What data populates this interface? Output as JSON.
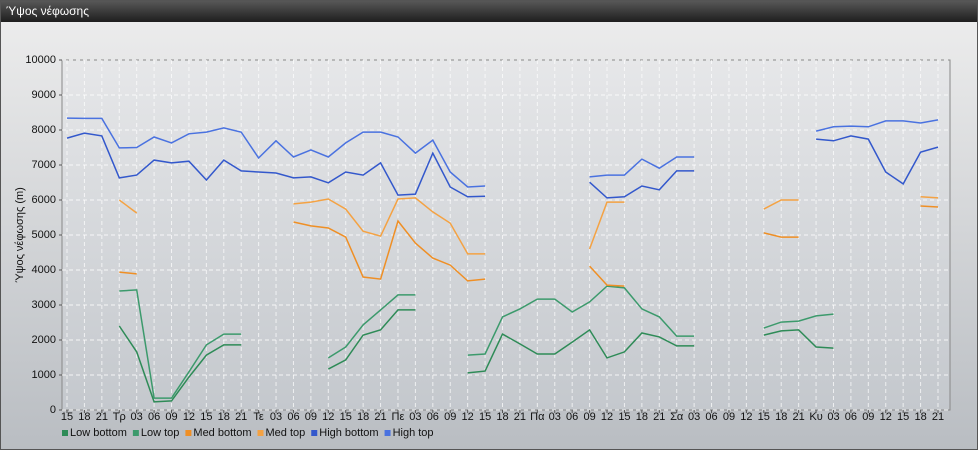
{
  "window_title": "Ύψος νέφωσης",
  "chart_data": {
    "type": "line",
    "ylabel": "Ύψος νέφωσης (m)",
    "ylim": [
      0,
      10000
    ],
    "yticks": [
      0,
      1000,
      2000,
      3000,
      4000,
      5000,
      6000,
      7000,
      8000,
      9000,
      10000
    ],
    "grid": true,
    "categories": [
      "15",
      "18",
      "21",
      "Τρ",
      "03",
      "06",
      "09",
      "12",
      "15",
      "18",
      "21",
      "Τε",
      "03",
      "06",
      "09",
      "12",
      "15",
      "18",
      "21",
      "Πε",
      "03",
      "06",
      "09",
      "12",
      "15",
      "18",
      "21",
      "Πα",
      "03",
      "06",
      "09",
      "12",
      "15",
      "18",
      "21",
      "Σα",
      "03",
      "06",
      "09",
      "12",
      "15",
      "18",
      "21",
      "Κυ",
      "03",
      "06",
      "09",
      "12",
      "15",
      "18",
      "21"
    ],
    "series": [
      {
        "name": "Low bottom",
        "color": "#2e8b57",
        "values": [
          null,
          null,
          null,
          2400,
          1660,
          230,
          260,
          940,
          1570,
          1860,
          1860,
          null,
          null,
          null,
          null,
          1170,
          1430,
          2140,
          2290,
          2860,
          2860,
          null,
          null,
          1060,
          1110,
          2170,
          1890,
          1600,
          1600,
          1940,
          2290,
          1490,
          1660,
          2200,
          2090,
          1830,
          1830,
          null,
          null,
          null,
          2140,
          2260,
          2290,
          1800,
          1770,
          null,
          null,
          null,
          null,
          null,
          null
        ]
      },
      {
        "name": "Low top",
        "color": "#3c9a6c",
        "values": [
          null,
          null,
          null,
          3400,
          3430,
          340,
          340,
          1090,
          1860,
          2170,
          2170,
          null,
          null,
          null,
          null,
          1490,
          1800,
          2430,
          2860,
          3290,
          3290,
          null,
          null,
          1570,
          1600,
          2660,
          2890,
          3170,
          3170,
          2800,
          3090,
          3540,
          3490,
          2890,
          2660,
          2110,
          2110,
          null,
          null,
          null,
          2340,
          2510,
          2540,
          2690,
          2740,
          null,
          null,
          null,
          null,
          null,
          null
        ]
      },
      {
        "name": "Med bottom",
        "color": "#ef8f25",
        "values": [
          null,
          null,
          null,
          3940,
          3890,
          null,
          null,
          null,
          null,
          null,
          null,
          null,
          null,
          5370,
          5260,
          5200,
          4940,
          3800,
          3740,
          5400,
          4770,
          4340,
          4140,
          3690,
          3740,
          null,
          null,
          null,
          null,
          null,
          4110,
          3570,
          3540,
          null,
          null,
          null,
          null,
          null,
          null,
          null,
          5060,
          4940,
          4940,
          null,
          null,
          null,
          null,
          null,
          null,
          5830,
          5800
        ]
      },
      {
        "name": "Med top",
        "color": "#f4a243",
        "values": [
          null,
          null,
          null,
          6000,
          5630,
          null,
          null,
          null,
          null,
          null,
          null,
          null,
          null,
          5890,
          5940,
          6030,
          5740,
          5110,
          4970,
          6030,
          6060,
          5660,
          5340,
          4460,
          4460,
          null,
          null,
          null,
          null,
          null,
          4600,
          5940,
          5940,
          null,
          null,
          null,
          null,
          null,
          null,
          null,
          5740,
          6000,
          6000,
          null,
          null,
          null,
          null,
          null,
          null,
          6090,
          6060
        ]
      },
      {
        "name": "High bottom",
        "color": "#3358cc",
        "values": [
          7770,
          7910,
          7830,
          6630,
          6710,
          7140,
          7060,
          7110,
          6570,
          7140,
          6830,
          6800,
          6770,
          6630,
          6660,
          6490,
          6800,
          6710,
          7060,
          6140,
          6170,
          7340,
          6370,
          6090,
          6110,
          null,
          null,
          null,
          null,
          null,
          6510,
          6060,
          6090,
          6400,
          6290,
          6830,
          6830,
          null,
          null,
          null,
          null,
          null,
          null,
          7740,
          7690,
          7830,
          7740,
          6800,
          6460,
          7370,
          7510
        ]
      },
      {
        "name": "High top",
        "color": "#4a72e0",
        "values": [
          8340,
          8330,
          8330,
          7490,
          7500,
          7800,
          7630,
          7890,
          7940,
          8060,
          7940,
          7200,
          7690,
          7230,
          7430,
          7230,
          7630,
          7940,
          7940,
          7800,
          7340,
          7710,
          6800,
          6370,
          6400,
          null,
          null,
          null,
          null,
          null,
          6660,
          6710,
          6710,
          7170,
          6910,
          7230,
          7230,
          null,
          null,
          null,
          null,
          null,
          null,
          7970,
          8090,
          8110,
          8090,
          8260,
          8260,
          8200,
          8290
        ]
      }
    ]
  }
}
